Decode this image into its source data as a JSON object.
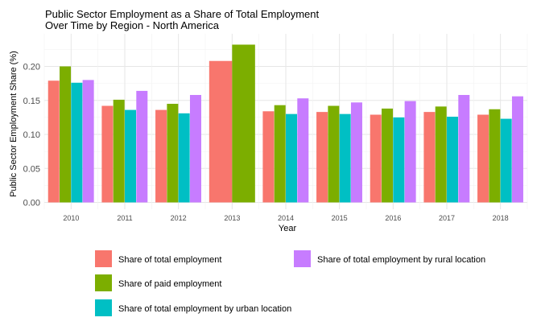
{
  "chart_data": {
    "type": "bar",
    "title_lines": [
      "Public Sector Employment as a Share of Total Employment",
      "Over Time by Region - North America"
    ],
    "xlabel": "Year",
    "ylabel": "Public Sector Employment Share (%)",
    "ylim": [
      0,
      0.24
    ],
    "yticks": [
      "0.00",
      "0.05",
      "0.10",
      "0.15",
      "0.20"
    ],
    "ytick_values": [
      0,
      0.05,
      0.1,
      0.15,
      0.2
    ],
    "grid": true,
    "legend_position": "bottom",
    "categories": [
      "2010",
      "2011",
      "2012",
      "2013",
      "2014",
      "2015",
      "2016",
      "2017",
      "2018"
    ],
    "series": [
      {
        "name": "Share of total employment",
        "color": "#F8766D",
        "values": [
          0.179,
          0.142,
          0.136,
          0.208,
          0.134,
          0.133,
          0.129,
          0.133,
          0.129
        ]
      },
      {
        "name": "Share of paid employment",
        "color": "#7CAE00",
        "values": [
          0.2,
          0.151,
          0.145,
          0.232,
          0.143,
          0.142,
          0.138,
          0.141,
          0.137
        ]
      },
      {
        "name": "Share of total employment by urban location",
        "color": "#00BFC4",
        "values": [
          0.176,
          0.136,
          0.131,
          null,
          0.13,
          0.13,
          0.125,
          0.126,
          0.123
        ]
      },
      {
        "name": "Share of total employment by rural location",
        "color": "#C77CFF",
        "values": [
          0.18,
          0.164,
          0.158,
          null,
          0.153,
          0.147,
          0.149,
          0.158,
          0.156
        ]
      }
    ]
  }
}
